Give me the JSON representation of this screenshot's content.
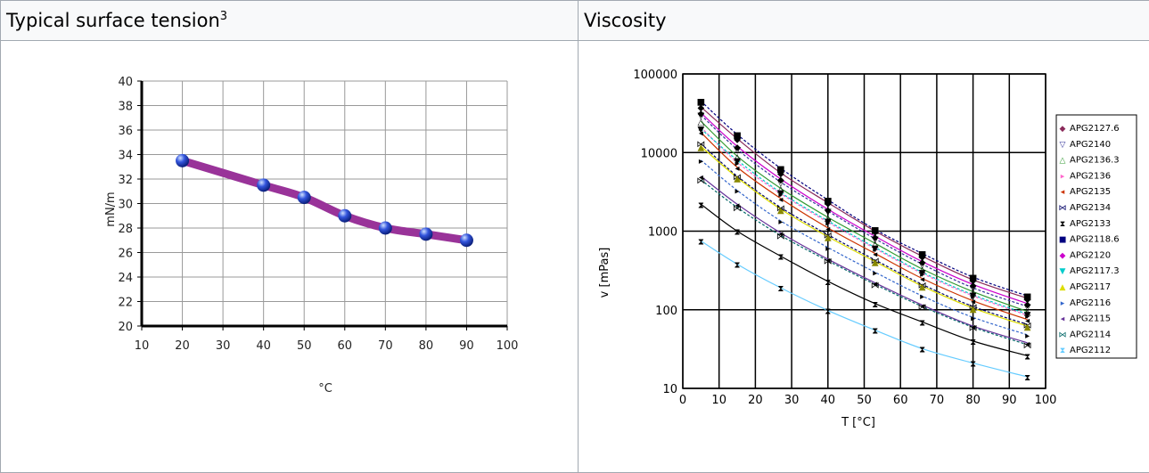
{
  "headers": {
    "left": "Typical surface tension",
    "left_sup": "3",
    "right": "Viscosity"
  },
  "chart_data": [
    {
      "type": "line",
      "title": "",
      "xlabel": "°C",
      "ylabel": "mN/m",
      "xlim": [
        10,
        100
      ],
      "ylim": [
        20,
        40
      ],
      "xticks": [
        "10",
        "20",
        "30",
        "40",
        "50",
        "60",
        "70",
        "80",
        "90",
        "100"
      ],
      "yticks": [
        "20",
        "22",
        "24",
        "26",
        "28",
        "30",
        "32",
        "34",
        "36",
        "38",
        "40"
      ],
      "grid": true,
      "line_color": "#993399",
      "marker_color": "#3355dd",
      "series": [
        {
          "x": [
            20,
            40,
            50,
            60,
            70,
            80,
            90
          ],
          "y": [
            33.5,
            31.5,
            30.5,
            29.0,
            28.0,
            27.5,
            27.0
          ]
        }
      ]
    },
    {
      "type": "scatter",
      "title": "",
      "xlabel": "T [°C]",
      "ylabel": "v [mPas]",
      "xlim": [
        0,
        100
      ],
      "ylim": [
        10,
        100000
      ],
      "yscale": "log",
      "xticks": [
        "0",
        "10",
        "20",
        "30",
        "40",
        "50",
        "60",
        "70",
        "80",
        "90",
        "100"
      ],
      "yticks": [
        "10",
        "100",
        "1000",
        "10000",
        "100000"
      ],
      "grid": true,
      "legend": "right",
      "x": [
        5,
        15,
        27,
        40,
        53,
        66,
        80,
        95
      ],
      "series": [
        {
          "name": "APG2127.6",
          "marker": "◆",
          "color": "#8a2a5a",
          "values": [
            38000,
            15000,
            5500,
            2300,
            1000,
            480,
            240,
            140
          ]
        },
        {
          "name": "APG2140",
          "marker": "▽",
          "color": "#333399",
          "values": [
            30000,
            11000,
            4200,
            1800,
            800,
            380,
            190,
            110
          ]
        },
        {
          "name": "APG2136.3",
          "marker": "△",
          "color": "#339933",
          "values": [
            25000,
            9000,
            3500,
            1500,
            700,
            330,
            170,
            95
          ]
        },
        {
          "name": "APG2136",
          "marker": "▸",
          "color": "#ff66cc",
          "values": [
            21000,
            7500,
            3000,
            1300,
            600,
            290,
            150,
            85
          ]
        },
        {
          "name": "APG2135",
          "marker": "◂",
          "color": "#cc3300",
          "values": [
            18000,
            6500,
            2600,
            1100,
            520,
            250,
            130,
            75
          ]
        },
        {
          "name": "APG2134",
          "marker": "⋈",
          "color": "#000066",
          "values": [
            13000,
            5000,
            2000,
            900,
            430,
            210,
            110,
            65
          ]
        },
        {
          "name": "APG2133",
          "marker": "⧗",
          "color": "#000000",
          "values": [
            2200,
            1000,
            480,
            230,
            120,
            70,
            40,
            26
          ]
        },
        {
          "name": "APG2118.6",
          "marker": "■",
          "color": "#000080",
          "values": [
            45000,
            17000,
            6300,
            2500,
            1050,
            520,
            260,
            150
          ]
        },
        {
          "name": "APG2120",
          "marker": "◆",
          "color": "#cc00cc",
          "values": [
            32000,
            12000,
            4600,
            1900,
            860,
            410,
            210,
            120
          ]
        },
        {
          "name": "APG2117.3",
          "marker": "▼",
          "color": "#00cccc",
          "values": [
            20000,
            8000,
            3100,
            1350,
            620,
            300,
            155,
            88
          ]
        },
        {
          "name": "APG2117",
          "marker": "▲",
          "color": "#dddd00",
          "values": [
            12000,
            4800,
            1900,
            850,
            410,
            200,
            105,
            62
          ]
        },
        {
          "name": "APG2116",
          "marker": "▸",
          "color": "#3366cc",
          "values": [
            8000,
            3300,
            1350,
            620,
            300,
            150,
            80,
            48
          ]
        },
        {
          "name": "APG2115",
          "marker": "◂",
          "color": "#663399",
          "values": [
            5000,
            2200,
            950,
            440,
            220,
            115,
            62,
            38
          ]
        },
        {
          "name": "APG2114",
          "marker": "⋈",
          "color": "#006666",
          "values": [
            4500,
            2000,
            880,
            420,
            210,
            110,
            60,
            36
          ]
        },
        {
          "name": "APG2112",
          "marker": "⧗",
          "color": "#66ccff",
          "values": [
            750,
            380,
            190,
            98,
            55,
            32,
            21,
            14
          ]
        }
      ]
    }
  ]
}
